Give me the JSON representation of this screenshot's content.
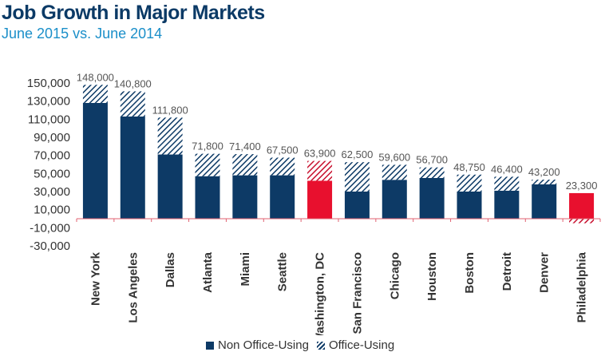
{
  "header": {
    "title": "Job Growth in Major Markets",
    "subtitle": "June 2015 vs. June 2014"
  },
  "colors": {
    "non_office": "#0d3a66",
    "highlight": "#e8102e",
    "axis": "#e06070"
  },
  "legend": {
    "non_office_label": "Non Office-Using",
    "office_label": "Office-Using"
  },
  "chart_data": {
    "type": "bar",
    "stacked": true,
    "title": "Job Growth in Major Markets",
    "subtitle": "June 2015 vs. June 2014",
    "xlabel": "",
    "ylabel": "",
    "ylim": [
      -30000,
      150000
    ],
    "yticks": [
      -30000,
      -10000,
      10000,
      30000,
      50000,
      70000,
      90000,
      110000,
      130000,
      150000
    ],
    "ytick_labels": [
      "-30,000",
      "-10,000",
      "10,000",
      "30,000",
      "50,000",
      "70,000",
      "90,000",
      "110,000",
      "130,000",
      "150,000"
    ],
    "categories": [
      "New York",
      "Los Angeles",
      "Dallas",
      "Atlanta",
      "Miami",
      "Seattle",
      "Washington, DC",
      "San Francisco",
      "Chicago",
      "Houston",
      "Boston",
      "Detroit",
      "Denver",
      "Philadelphia"
    ],
    "highlighted": [
      "Washington, DC",
      "Philadelphia"
    ],
    "series": [
      {
        "name": "Non Office-Using",
        "style": "solid",
        "values": [
          128000,
          113000,
          71000,
          47000,
          48000,
          48000,
          42000,
          30000,
          43000,
          45000,
          30000,
          31000,
          38000,
          28300
        ]
      },
      {
        "name": "Office-Using",
        "style": "hatched",
        "values": [
          20000,
          27800,
          40800,
          24800,
          23400,
          19500,
          21900,
          32500,
          16600,
          11700,
          18750,
          15400,
          5200,
          -5000
        ]
      }
    ],
    "totals": [
      148000,
      140800,
      111800,
      71800,
      71400,
      67500,
      63900,
      62500,
      59600,
      56700,
      48750,
      46400,
      43200,
      23300
    ],
    "total_labels": [
      "148,000",
      "140,800",
      "111,800",
      "71,800",
      "71,400",
      "67,500",
      "63,900",
      "62,500",
      "59,600",
      "56,700",
      "48,750",
      "46,400",
      "43,200",
      "23,300"
    ],
    "legend_position": "bottom-center"
  }
}
